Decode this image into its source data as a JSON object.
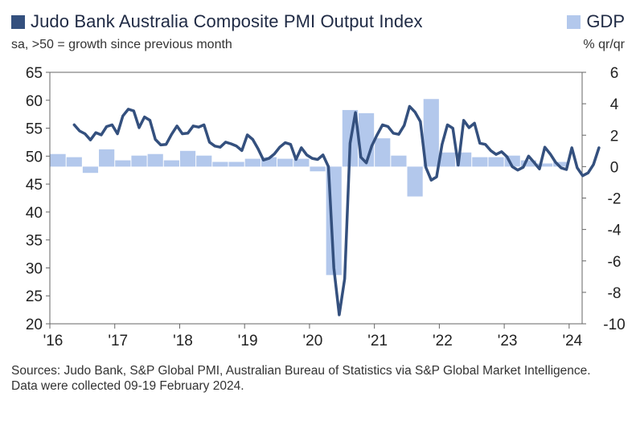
{
  "chart_data": {
    "type": "line+bar",
    "title": "Judo Bank Australia Composite PMI Output Index",
    "subtitle": "sa, >50 = growth since previous month",
    "legend": {
      "line_label": "Judo Bank Australia Composite PMI Output Index",
      "bar_label": "GDP"
    },
    "right_axis_label": "% qr/qr",
    "left_axis": {
      "min": 20,
      "max": 65,
      "ticks": [
        20,
        25,
        30,
        35,
        40,
        45,
        50,
        55,
        60,
        65
      ]
    },
    "right_axis": {
      "min": -10,
      "max": 6,
      "ticks": [
        -10,
        -8,
        -6,
        -4,
        -2,
        0,
        2,
        4,
        6
      ]
    },
    "x_axis": {
      "start_year": 2016,
      "end_year": 2024.2,
      "tick_labels": [
        "'16",
        "'17",
        "'18",
        "'19",
        "'20",
        "'21",
        "'22",
        "'23",
        "'24"
      ]
    },
    "series": [
      {
        "name": "Composite PMI Output Index",
        "axis": "left",
        "start": "2016-05",
        "values": [
          55.6,
          54.5,
          54.0,
          52.9,
          54.2,
          53.8,
          55.3,
          55.6,
          54.0,
          57.2,
          58.4,
          58.1,
          55.1,
          57.0,
          56.4,
          53.0,
          52.0,
          52.1,
          53.9,
          55.4,
          54.0,
          54.1,
          55.4,
          55.2,
          55.6,
          52.5,
          51.8,
          51.6,
          52.5,
          52.2,
          51.8,
          51.0,
          53.8,
          53.0,
          51.3,
          49.3,
          49.6,
          50.4,
          51.6,
          52.4,
          52.1,
          49.4,
          51.5,
          50.2,
          49.6,
          49.4,
          50.2,
          48.1,
          30.0,
          21.6,
          28.1,
          52.3,
          57.8,
          49.8,
          48.8,
          51.8,
          53.8,
          55.6,
          55.3,
          54.1,
          53.9,
          55.5,
          58.9,
          57.9,
          56.2,
          48.0,
          45.7,
          46.3,
          52.1,
          55.6,
          55.0,
          48.4,
          56.4,
          55.1,
          55.9,
          52.3,
          52.1,
          51.0,
          50.3,
          50.8,
          49.9,
          48.1,
          47.5,
          48.0,
          50.0,
          48.9,
          47.7,
          51.6,
          50.4,
          48.9,
          47.9,
          47.6,
          51.5,
          47.9,
          46.5,
          47.0,
          48.5,
          51.5
        ]
      }
    ],
    "gdp_bars": {
      "name": "GDP",
      "axis": "right",
      "start": "2016-Q1",
      "values": [
        0.8,
        0.6,
        -0.4,
        1.1,
        0.4,
        0.7,
        0.8,
        0.4,
        1.0,
        0.7,
        0.3,
        0.3,
        0.5,
        0.6,
        0.5,
        0.5,
        -0.3,
        -6.9,
        3.6,
        3.4,
        1.8,
        0.7,
        -1.9,
        4.3,
        0.9,
        0.9,
        0.6,
        0.6,
        0.7,
        0.4,
        0.2,
        0.3
      ]
    }
  },
  "footnote": {
    "sources": "Sources: Judo Bank, S&P Global PMI, Australian Bureau of Statistics via S&P Global Market Intelligence.",
    "collected": "Data were collected 09-19 February 2024."
  },
  "colors": {
    "line": "#34507e",
    "bars": "#b3c8ec",
    "axis": "#666666"
  }
}
